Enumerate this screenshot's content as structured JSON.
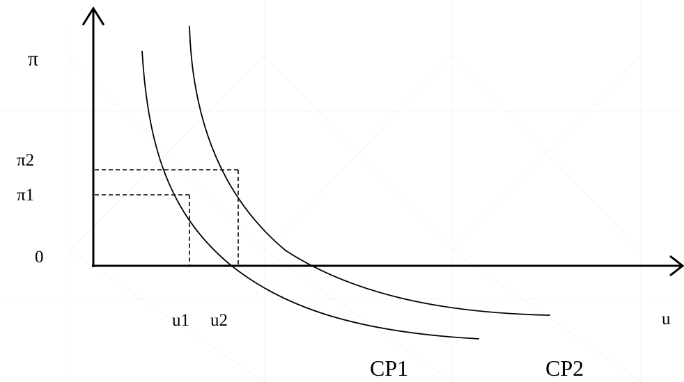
{
  "diagram": {
    "y_axis_label": "π",
    "x_axis_label": "u",
    "origin_label": "0",
    "y_ticks": {
      "pi2": "π2",
      "pi1": "π1"
    },
    "x_ticks": {
      "u1": "u1",
      "u2": "u2"
    },
    "curves": {
      "cp1": "CP1",
      "cp2": "CP2"
    },
    "colors": {
      "ink": "#000000",
      "background": "#ffffff"
    }
  }
}
